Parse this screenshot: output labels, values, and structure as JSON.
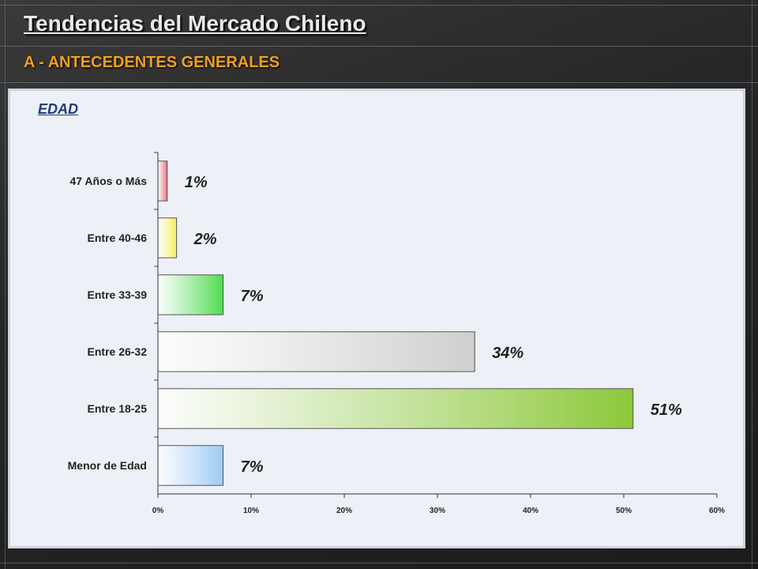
{
  "header": {
    "title": "Tendencias del Mercado Chileno",
    "subtitle": "A - ANTECEDENTES GENERALES"
  },
  "panel": {
    "label": "EDAD"
  },
  "chart_data": {
    "type": "bar",
    "orientation": "horizontal",
    "title": "",
    "xlabel": "",
    "ylabel": "",
    "categories": [
      "47 Años o Más",
      "Entre 40-46",
      "Entre 33-39",
      "Entre 26-32",
      "Entre 18-25",
      "Menor de Edad"
    ],
    "values": [
      1,
      2,
      7,
      34,
      51,
      7
    ],
    "data_labels": [
      "1%",
      "2%",
      "7%",
      "34%",
      "51%",
      "7%"
    ],
    "xlim": [
      0,
      60
    ],
    "xticks": [
      "0%",
      "10%",
      "20%",
      "30%",
      "40%",
      "50%",
      "60%"
    ],
    "bar_colors": [
      "#e8707f",
      "#f4ef58",
      "#4fdc4f",
      "#cfcfcf",
      "#8cc83a",
      "#9ecbf3"
    ],
    "grid": false
  }
}
